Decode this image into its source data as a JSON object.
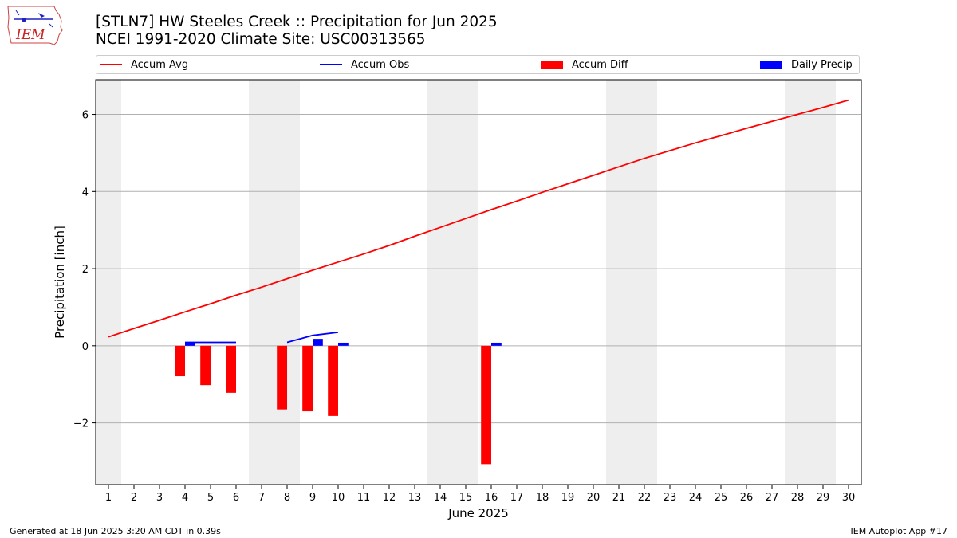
{
  "header": {
    "title_line1": "[STLN7] HW Steeles Creek :: Precipitation for Jun 2025",
    "title_line2": "NCEI 1991-2020 Climate Site: USC00313565"
  },
  "logo": {
    "text": "IEM",
    "icon": "iowa-state-outline-icon"
  },
  "legend": {
    "placement": "top-center",
    "items": [
      {
        "label": "Accum Avg",
        "kind": "line",
        "color": "#ff0000"
      },
      {
        "label": "Accum Obs",
        "kind": "line",
        "color": "#0000ff"
      },
      {
        "label": "Accum Diff",
        "kind": "bar",
        "color": "#ff0000"
      },
      {
        "label": "Daily Precip",
        "kind": "bar",
        "color": "#0000ff"
      }
    ]
  },
  "chart_data": {
    "type": "bar",
    "xlabel": "June 2025",
    "ylabel": "Precipitation [inch]",
    "xlim": [
      0.5,
      30.5
    ],
    "ylim": [
      -3.6,
      6.9
    ],
    "x_ticks": [
      1,
      2,
      3,
      4,
      5,
      6,
      7,
      8,
      9,
      10,
      11,
      12,
      13,
      14,
      15,
      16,
      17,
      18,
      19,
      20,
      21,
      22,
      23,
      24,
      25,
      26,
      27,
      28,
      29,
      30
    ],
    "y_ticks": [
      -2,
      0,
      2,
      4,
      6
    ],
    "y_tick_labels": [
      "−2",
      "0",
      "2",
      "4",
      "6"
    ],
    "grid": "horizontal",
    "weekend_shading": [
      [
        0.5,
        1.5
      ],
      [
        6.5,
        8.5
      ],
      [
        13.5,
        15.5
      ],
      [
        20.5,
        22.5
      ],
      [
        27.5,
        29.5
      ]
    ],
    "shade_color": "#eeeeee",
    "series": [
      {
        "name": "Accum Avg",
        "type": "line",
        "color": "#ff0000",
        "x": [
          1,
          2,
          3,
          4,
          5,
          6,
          7,
          8,
          9,
          10,
          11,
          12,
          13,
          14,
          15,
          16,
          17,
          18,
          19,
          20,
          21,
          22,
          23,
          24,
          25,
          26,
          27,
          28,
          29,
          30
        ],
        "values": [
          0.23,
          0.45,
          0.66,
          0.88,
          1.09,
          1.31,
          1.52,
          1.74,
          1.96,
          2.17,
          2.38,
          2.6,
          2.84,
          3.07,
          3.3,
          3.53,
          3.75,
          3.98,
          4.2,
          4.42,
          4.64,
          4.86,
          5.06,
          5.26,
          5.45,
          5.64,
          5.82,
          6.0,
          6.18,
          6.37
        ]
      },
      {
        "name": "Accum Obs",
        "type": "line",
        "color": "#0000ff",
        "x": [
          4,
          5,
          6,
          null,
          8,
          9,
          10
        ],
        "values": [
          0.09,
          0.09,
          0.09,
          null,
          0.09,
          0.27,
          0.35
        ]
      },
      {
        "name": "Accum Diff",
        "type": "bar",
        "color": "#ff0000",
        "x": [
          4,
          5,
          6,
          8,
          9,
          10,
          16
        ],
        "values": [
          -0.79,
          -1.02,
          -1.22,
          -1.65,
          -1.7,
          -1.82,
          -3.07
        ]
      },
      {
        "name": "Daily Precip",
        "type": "bar",
        "color": "#0000ff",
        "x": [
          4,
          9,
          10,
          16
        ],
        "values": [
          0.09,
          0.18,
          0.08,
          0.08
        ]
      }
    ]
  },
  "footer": {
    "generated": "Generated at 18 Jun 2025 3:20 AM CDT in 0.39s",
    "app": "IEM Autoplot App #17"
  }
}
